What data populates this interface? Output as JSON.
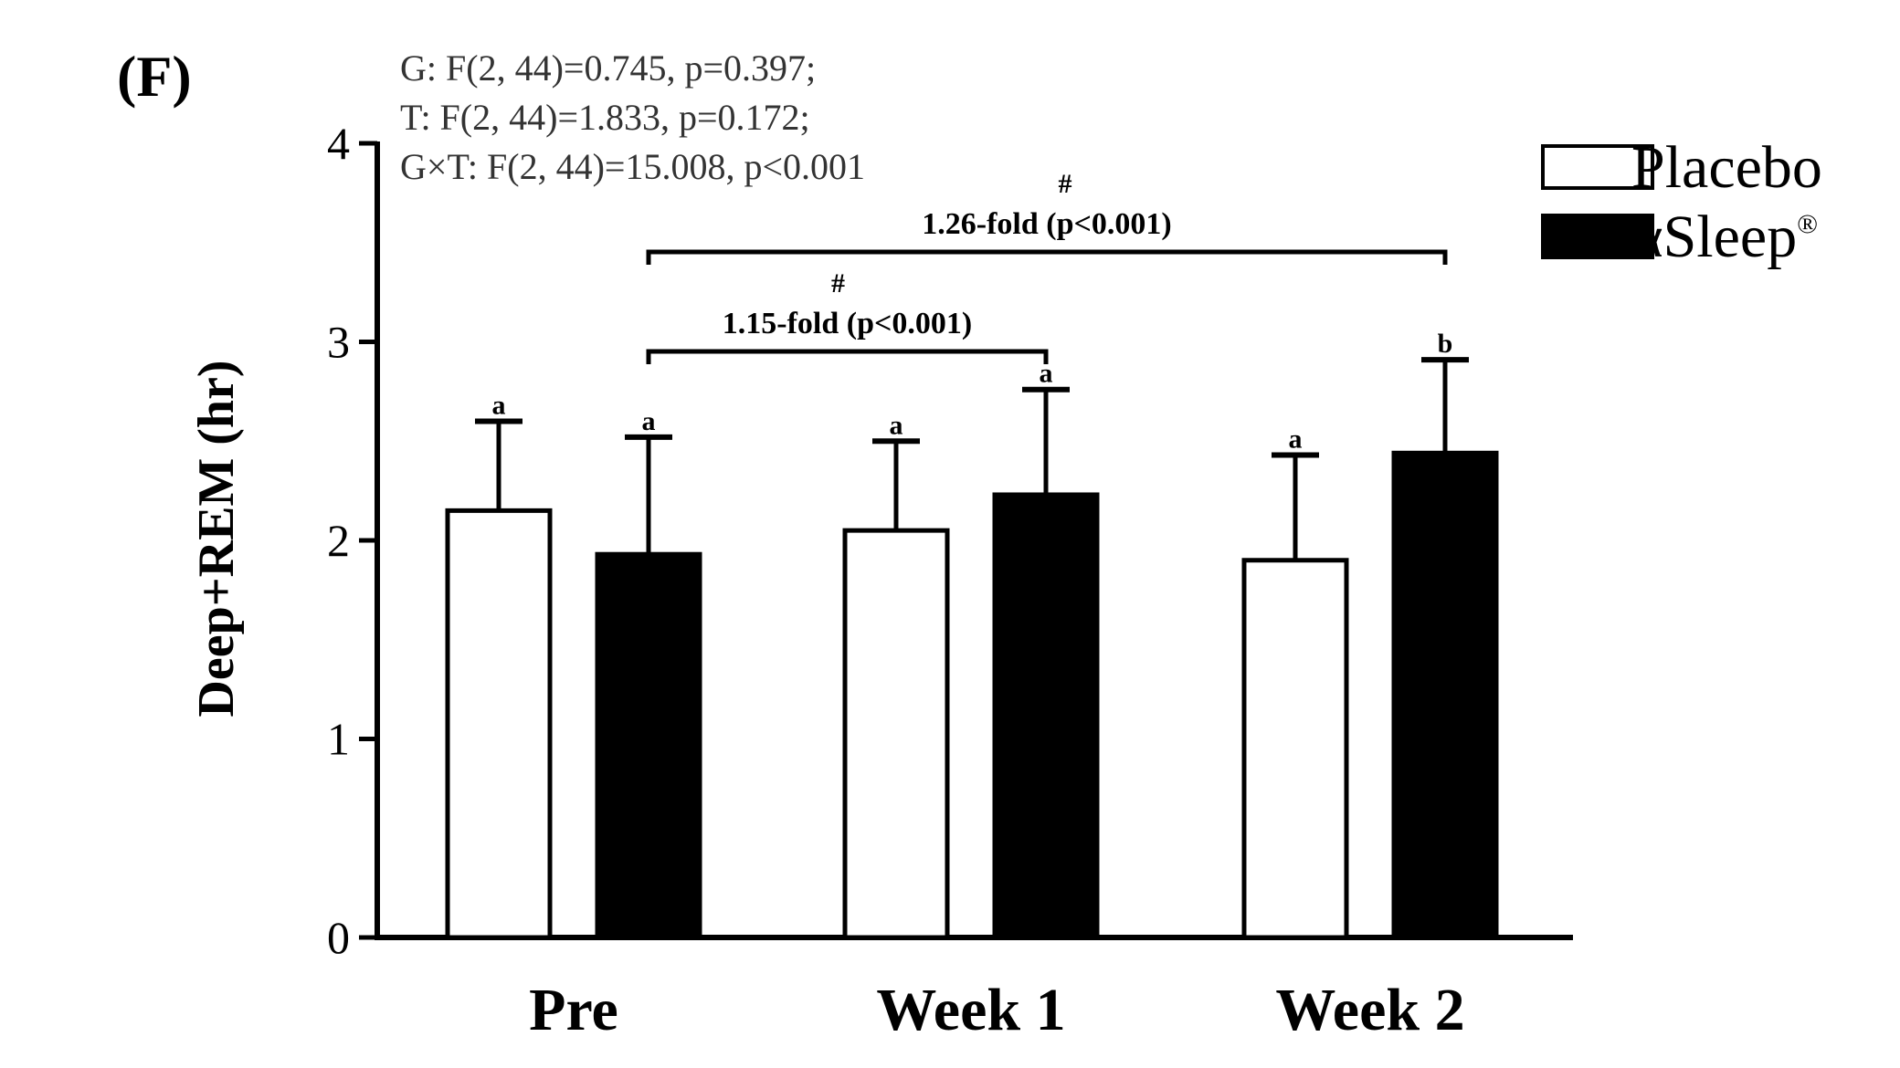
{
  "panel_label": "(F)",
  "stats": [
    "G: F(2, 44)=0.745, p=0.397;",
    "T: F(2, 44)=1.833, p=0.172;",
    "G×T: F(2, 44)=15.008, p<0.001"
  ],
  "chart_data": {
    "type": "bar",
    "title": "",
    "xlabel": "",
    "ylabel": "Deep+REM (hr)",
    "ylim": [
      0,
      4
    ],
    "yticks": [
      "0",
      "1",
      "2",
      "3",
      "4"
    ],
    "categories": [
      "Pre",
      "Week 1",
      "Week 2"
    ],
    "series": [
      {
        "name": "Placebo",
        "fill": "#ffffff",
        "values": [
          2.15,
          2.05,
          1.9
        ],
        "error": [
          0.45,
          0.45,
          0.53
        ],
        "letters": [
          "a",
          "a",
          "a"
        ]
      },
      {
        "name": "αSleep",
        "fill": "#000000",
        "values": [
          1.93,
          2.23,
          2.44
        ],
        "error": [
          0.59,
          0.53,
          0.47
        ],
        "letters": [
          "a",
          "a",
          "b"
        ]
      }
    ],
    "legend": {
      "position": "top-right",
      "entries": [
        {
          "label": "Placebo",
          "superscript": ""
        },
        {
          "label": "αSleep",
          "superscript": "®"
        }
      ]
    },
    "annotations": [
      {
        "text": "1.15-fold (p<0.001)",
        "marker": "#",
        "from_category": 0,
        "to_category": 1,
        "series": 1
      },
      {
        "text": "1.26-fold (p<0.001)",
        "marker": "#",
        "from_category": 0,
        "to_category": 2,
        "series": 1
      }
    ]
  }
}
